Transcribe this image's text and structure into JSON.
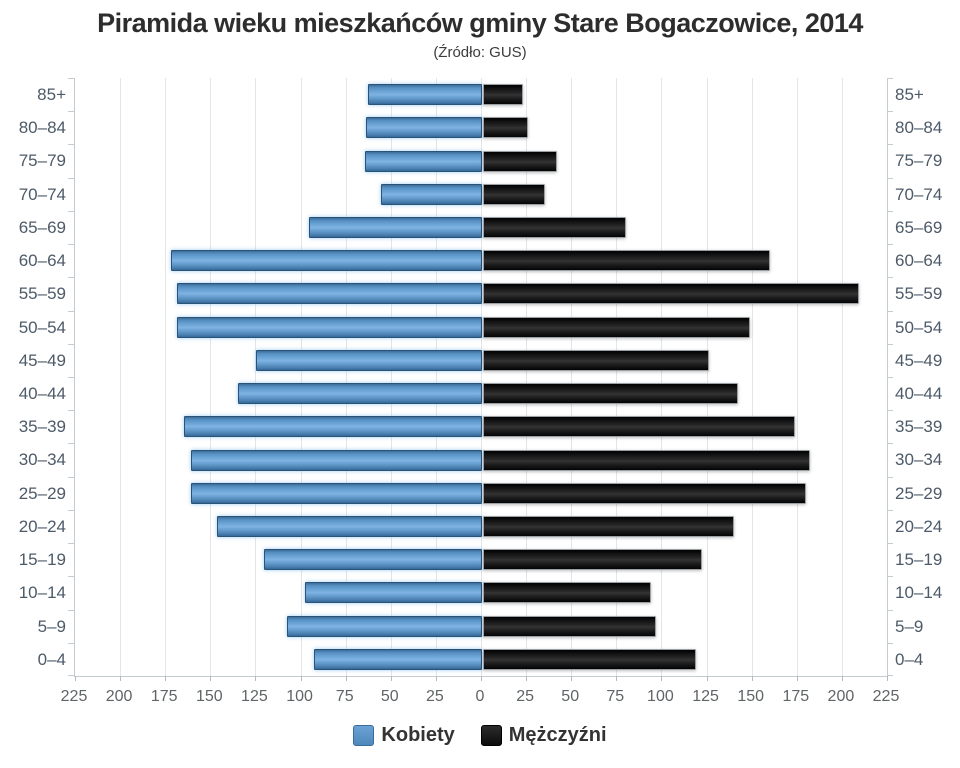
{
  "title": "Piramida wieku mieszkańców gminy Stare Bogaczowice, 2014",
  "subtitle": "(Źródło: GUS)",
  "legend": {
    "items": [
      {
        "label": "Kobiety",
        "color": "#5b93c6"
      },
      {
        "label": "Mężczyźni",
        "color": "#1a1a1a"
      }
    ]
  },
  "chart_data": {
    "type": "bar",
    "variant": "population-pyramid",
    "title": "Piramida wieku mieszkańców gminy Stare Bogaczowice, 2014",
    "subtitle": "(Źródło: GUS)",
    "categories": [
      "85+",
      "80–84",
      "75–79",
      "70–74",
      "65–69",
      "60–64",
      "55–59",
      "50–54",
      "45–49",
      "40–44",
      "35–39",
      "30–34",
      "25–29",
      "20–24",
      "15–19",
      "10–14",
      "5–9",
      "0–4"
    ],
    "series": [
      {
        "name": "Kobiety",
        "side": "left",
        "color": "#5b93c6",
        "values": [
          62,
          63,
          64,
          55,
          95,
          171,
          168,
          168,
          124,
          134,
          164,
          160,
          160,
          146,
          120,
          97,
          107,
          92
        ]
      },
      {
        "name": "Mężczyźni",
        "side": "right",
        "color": "#1a1a1a",
        "values": [
          21,
          24,
          40,
          33,
          78,
          158,
          207,
          147,
          124,
          140,
          172,
          180,
          178,
          138,
          120,
          92,
          95,
          117
        ]
      }
    ],
    "x_axis": {
      "max": 225,
      "step": 25,
      "tick_labels": [
        "225",
        "200",
        "175",
        "150",
        "125",
        "100",
        "75",
        "50",
        "25",
        "0",
        "25",
        "50",
        "75",
        "100",
        "125",
        "150",
        "175",
        "200",
        "225"
      ]
    },
    "grid": true,
    "legend_position": "bottom"
  }
}
